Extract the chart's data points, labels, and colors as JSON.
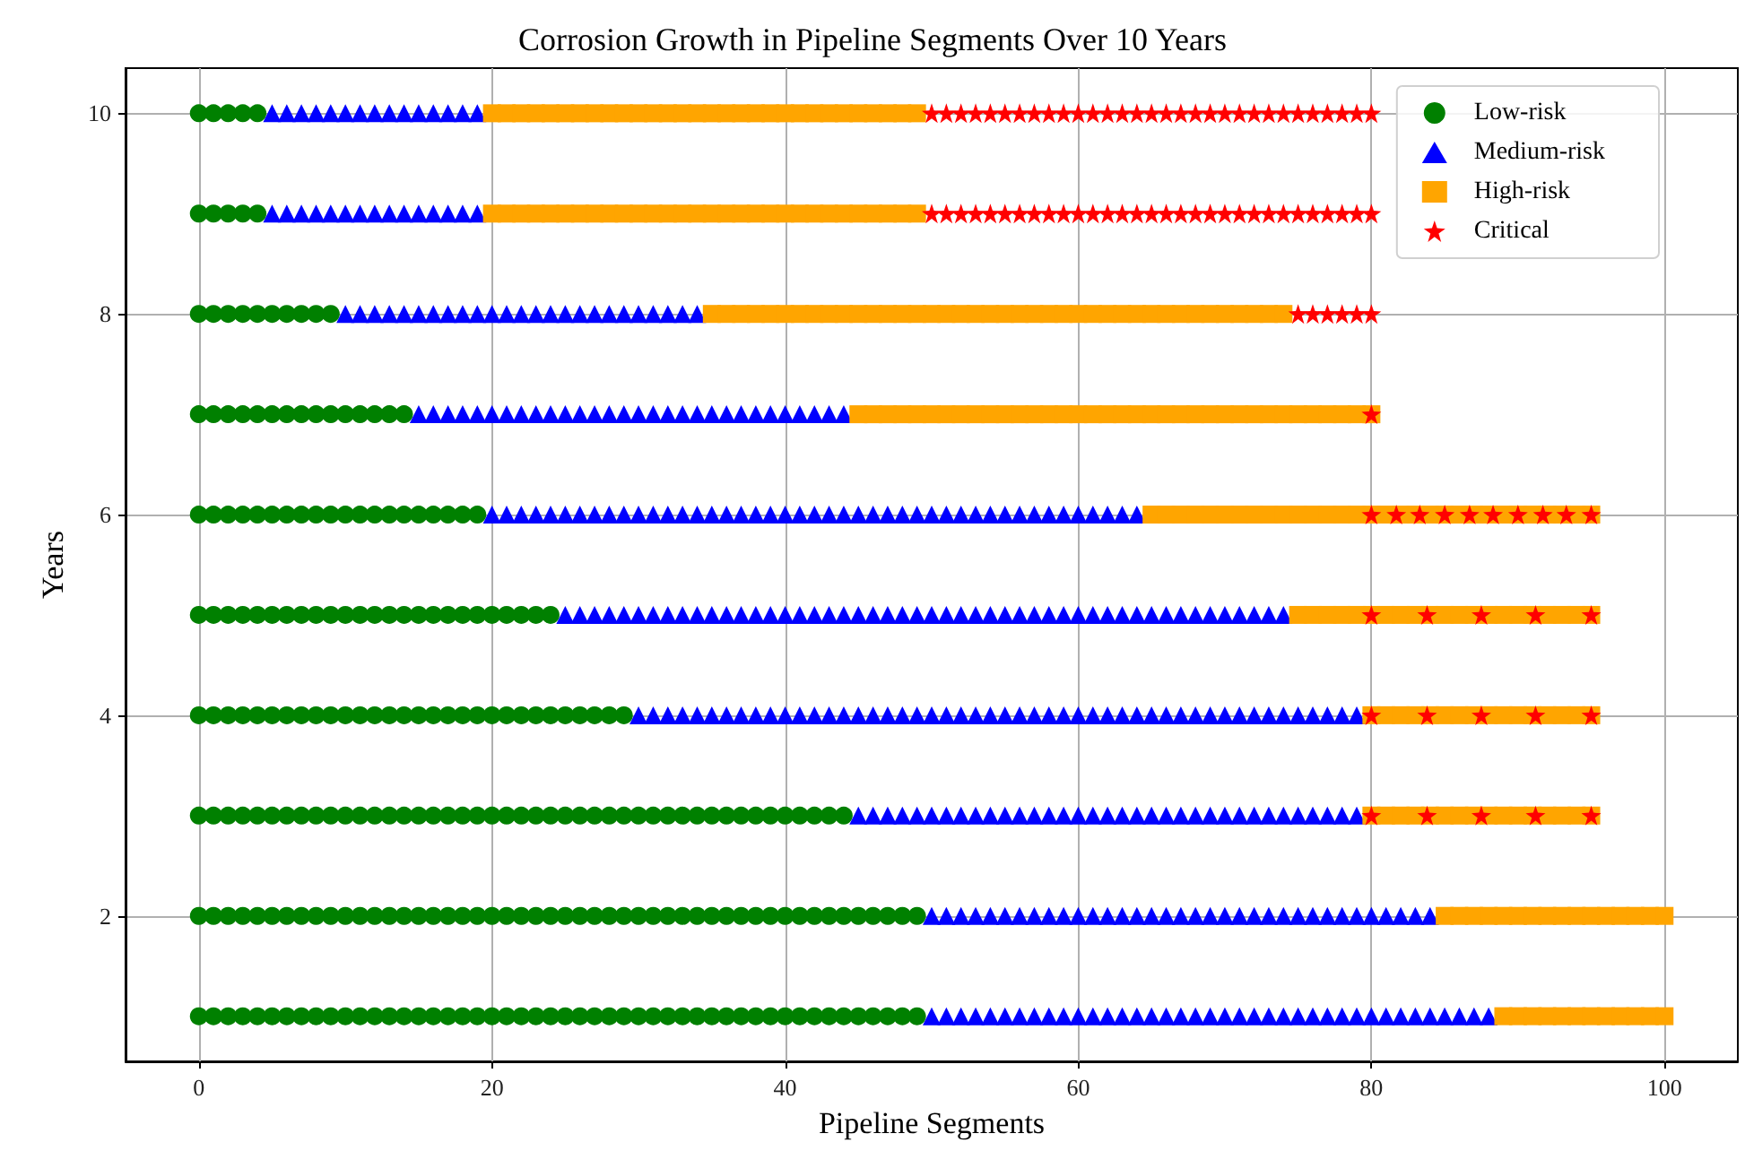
{
  "chart_data": {
    "type": "scatter",
    "title": "Corrosion Growth in Pipeline Segments Over 10 Years",
    "xlabel": "Pipeline Segments",
    "ylabel": "Years",
    "xlim": [
      -5,
      105
    ],
    "xticks": [
      0,
      20,
      40,
      60,
      80,
      100
    ],
    "ylim": [
      0.55,
      10.45
    ],
    "yticks": [
      2,
      4,
      6,
      8,
      10
    ],
    "grid": true,
    "legend": "top right",
    "series": [
      {
        "name": "Low-risk",
        "color": "#008000",
        "marker": "circle",
        "x": [
          0,
          1,
          2,
          3,
          4,
          5,
          6,
          7,
          8,
          9,
          10,
          11,
          12,
          13,
          14,
          15,
          16,
          17,
          18,
          19,
          20,
          21,
          22,
          23,
          24,
          25,
          26,
          27,
          28,
          29,
          30,
          31,
          32,
          33,
          34,
          35,
          36,
          37,
          38,
          39,
          40,
          41,
          42,
          43,
          44,
          45,
          46,
          47,
          48,
          49,
          0,
          1,
          2,
          3,
          4,
          5,
          6,
          7,
          8,
          9,
          10,
          11,
          12,
          13,
          14,
          15,
          16,
          17,
          18,
          19,
          20,
          21,
          22,
          23,
          24,
          25,
          26,
          27,
          28,
          29,
          30,
          31,
          32,
          33,
          34,
          35,
          36,
          37,
          38,
          39,
          40,
          41,
          42,
          43,
          44,
          45,
          46,
          47,
          48,
          49,
          0,
          1,
          2,
          3,
          4,
          5,
          6,
          7,
          8,
          9,
          10,
          11,
          12,
          13,
          14,
          15,
          16,
          17,
          18,
          19,
          20,
          21,
          22,
          23,
          24,
          25,
          26,
          27,
          28,
          29,
          30,
          31,
          32,
          33,
          34,
          35,
          36,
          37,
          38,
          39,
          40,
          41,
          42,
          43,
          44,
          0,
          1,
          2,
          3,
          4,
          5,
          6,
          7,
          8,
          9,
          10,
          11,
          12,
          13,
          14,
          15,
          16,
          17,
          18,
          19,
          20,
          21,
          22,
          23,
          24,
          25,
          26,
          27,
          28,
          29,
          0,
          1,
          2,
          3,
          4,
          5,
          6,
          7,
          8,
          9,
          10,
          11,
          12,
          13,
          14,
          15,
          16,
          17,
          18,
          19,
          20,
          21,
          22,
          23,
          24,
          0,
          1,
          2,
          3,
          4,
          5,
          6,
          7,
          8,
          9,
          10,
          11,
          12,
          13,
          14,
          15,
          16,
          17,
          18,
          19,
          0,
          1,
          2,
          3,
          4,
          5,
          6,
          7,
          8,
          9,
          10,
          11,
          12,
          13,
          14,
          0,
          1,
          2,
          3,
          4,
          5,
          6,
          7,
          8,
          9,
          0,
          1,
          2,
          3,
          4,
          0,
          1,
          2,
          3,
          4
        ],
        "values": [
          1,
          1,
          1,
          1,
          1,
          1,
          1,
          1,
          1,
          1,
          1,
          1,
          1,
          1,
          1,
          1,
          1,
          1,
          1,
          1,
          1,
          1,
          1,
          1,
          1,
          1,
          1,
          1,
          1,
          1,
          1,
          1,
          1,
          1,
          1,
          1,
          1,
          1,
          1,
          1,
          1,
          1,
          1,
          1,
          1,
          1,
          1,
          1,
          1,
          1,
          2,
          2,
          2,
          2,
          2,
          2,
          2,
          2,
          2,
          2,
          2,
          2,
          2,
          2,
          2,
          2,
          2,
          2,
          2,
          2,
          2,
          2,
          2,
          2,
          2,
          2,
          2,
          2,
          2,
          2,
          2,
          2,
          2,
          2,
          2,
          2,
          2,
          2,
          2,
          2,
          2,
          2,
          2,
          2,
          2,
          2,
          2,
          2,
          2,
          2,
          3,
          3,
          3,
          3,
          3,
          3,
          3,
          3,
          3,
          3,
          3,
          3,
          3,
          3,
          3,
          3,
          3,
          3,
          3,
          3,
          3,
          3,
          3,
          3,
          3,
          3,
          3,
          3,
          3,
          3,
          3,
          3,
          3,
          3,
          3,
          3,
          3,
          3,
          3,
          3,
          3,
          3,
          3,
          3,
          3,
          4,
          4,
          4,
          4,
          4,
          4,
          4,
          4,
          4,
          4,
          4,
          4,
          4,
          4,
          4,
          4,
          4,
          4,
          4,
          4,
          4,
          4,
          4,
          4,
          4,
          4,
          4,
          4,
          4,
          4,
          5,
          5,
          5,
          5,
          5,
          5,
          5,
          5,
          5,
          5,
          5,
          5,
          5,
          5,
          5,
          5,
          5,
          5,
          5,
          5,
          5,
          5,
          5,
          5,
          5,
          6,
          6,
          6,
          6,
          6,
          6,
          6,
          6,
          6,
          6,
          6,
          6,
          6,
          6,
          6,
          6,
          6,
          6,
          6,
          6,
          7,
          7,
          7,
          7,
          7,
          7,
          7,
          7,
          7,
          7,
          7,
          7,
          7,
          7,
          7,
          8,
          8,
          8,
          8,
          8,
          8,
          8,
          8,
          8,
          8,
          9,
          9,
          9,
          9,
          9,
          10,
          10,
          10,
          10,
          10
        ]
      },
      {
        "name": "Medium-risk",
        "color": "#0000ff",
        "marker": "triangle",
        "x": [
          50,
          51,
          52,
          53,
          54,
          55,
          56,
          57,
          58,
          59,
          60,
          61,
          62,
          63,
          64,
          65,
          66,
          67,
          68,
          69,
          70,
          71,
          72,
          73,
          74,
          75,
          76,
          77,
          78,
          79,
          80,
          81,
          82,
          83,
          84,
          85,
          86,
          87,
          88,
          50,
          51,
          52,
          53,
          54,
          55,
          56,
          57,
          58,
          59,
          60,
          61,
          62,
          63,
          64,
          65,
          66,
          67,
          68,
          69,
          70,
          71,
          72,
          73,
          74,
          75,
          76,
          77,
          78,
          79,
          80,
          81,
          82,
          83,
          84,
          45,
          46,
          47,
          48,
          49,
          50,
          51,
          52,
          53,
          54,
          55,
          56,
          57,
          58,
          59,
          60,
          61,
          62,
          63,
          64,
          65,
          66,
          67,
          68,
          69,
          70,
          71,
          72,
          73,
          74,
          75,
          76,
          77,
          78,
          79,
          30,
          31,
          32,
          33,
          34,
          35,
          36,
          37,
          38,
          39,
          40,
          41,
          42,
          43,
          44,
          45,
          46,
          47,
          48,
          49,
          50,
          51,
          52,
          53,
          54,
          55,
          56,
          57,
          58,
          59,
          60,
          61,
          62,
          63,
          64,
          65,
          66,
          67,
          68,
          69,
          70,
          71,
          72,
          73,
          74,
          75,
          76,
          77,
          78,
          79,
          25,
          26,
          27,
          28,
          29,
          30,
          31,
          32,
          33,
          34,
          35,
          36,
          37,
          38,
          39,
          40,
          41,
          42,
          43,
          44,
          45,
          46,
          47,
          48,
          49,
          50,
          51,
          52,
          53,
          54,
          55,
          56,
          57,
          58,
          59,
          60,
          61,
          62,
          63,
          64,
          65,
          66,
          67,
          68,
          69,
          70,
          71,
          72,
          73,
          74,
          20,
          21,
          22,
          23,
          24,
          25,
          26,
          27,
          28,
          29,
          30,
          31,
          32,
          33,
          34,
          35,
          36,
          37,
          38,
          39,
          40,
          41,
          42,
          43,
          44,
          45,
          46,
          47,
          48,
          49,
          50,
          51,
          52,
          53,
          54,
          55,
          56,
          57,
          58,
          59,
          60,
          61,
          62,
          63,
          64,
          15,
          16,
          17,
          18,
          19,
          20,
          21,
          22,
          23,
          24,
          25,
          26,
          27,
          28,
          29,
          30,
          31,
          32,
          33,
          34,
          35,
          36,
          37,
          38,
          39,
          40,
          41,
          42,
          43,
          44,
          10,
          11,
          12,
          13,
          14,
          15,
          16,
          17,
          18,
          19,
          20,
          21,
          22,
          23,
          24,
          25,
          26,
          27,
          28,
          29,
          30,
          31,
          32,
          33,
          34,
          5,
          6,
          7,
          8,
          9,
          10,
          11,
          12,
          13,
          14,
          15,
          16,
          17,
          18,
          19,
          5,
          6,
          7,
          8,
          9,
          10,
          11,
          12,
          13,
          14,
          15,
          16,
          17,
          18,
          19
        ],
        "values": [
          1,
          1,
          1,
          1,
          1,
          1,
          1,
          1,
          1,
          1,
          1,
          1,
          1,
          1,
          1,
          1,
          1,
          1,
          1,
          1,
          1,
          1,
          1,
          1,
          1,
          1,
          1,
          1,
          1,
          1,
          1,
          1,
          1,
          1,
          1,
          1,
          1,
          1,
          1,
          2,
          2,
          2,
          2,
          2,
          2,
          2,
          2,
          2,
          2,
          2,
          2,
          2,
          2,
          2,
          2,
          2,
          2,
          2,
          2,
          2,
          2,
          2,
          2,
          2,
          2,
          2,
          2,
          2,
          2,
          2,
          2,
          2,
          2,
          2,
          3,
          3,
          3,
          3,
          3,
          3,
          3,
          3,
          3,
          3,
          3,
          3,
          3,
          3,
          3,
          3,
          3,
          3,
          3,
          3,
          3,
          3,
          3,
          3,
          3,
          3,
          3,
          3,
          3,
          3,
          3,
          3,
          3,
          3,
          3,
          4,
          4,
          4,
          4,
          4,
          4,
          4,
          4,
          4,
          4,
          4,
          4,
          4,
          4,
          4,
          4,
          4,
          4,
          4,
          4,
          4,
          4,
          4,
          4,
          4,
          4,
          4,
          4,
          4,
          4,
          4,
          4,
          4,
          4,
          4,
          4,
          4,
          4,
          4,
          4,
          4,
          4,
          4,
          4,
          4,
          4,
          4,
          4,
          4,
          4,
          5,
          5,
          5,
          5,
          5,
          5,
          5,
          5,
          5,
          5,
          5,
          5,
          5,
          5,
          5,
          5,
          5,
          5,
          5,
          5,
          5,
          5,
          5,
          5,
          5,
          5,
          5,
          5,
          5,
          5,
          5,
          5,
          5,
          5,
          5,
          5,
          5,
          5,
          5,
          5,
          5,
          5,
          5,
          5,
          5,
          5,
          5,
          5,
          5,
          5,
          6,
          6,
          6,
          6,
          6,
          6,
          6,
          6,
          6,
          6,
          6,
          6,
          6,
          6,
          6,
          6,
          6,
          6,
          6,
          6,
          6,
          6,
          6,
          6,
          6,
          6,
          6,
          6,
          6,
          6,
          6,
          6,
          6,
          6,
          6,
          6,
          6,
          6,
          6,
          6,
          6,
          6,
          6,
          6,
          6,
          7,
          7,
          7,
          7,
          7,
          7,
          7,
          7,
          7,
          7,
          7,
          7,
          7,
          7,
          7,
          7,
          7,
          7,
          7,
          7,
          7,
          7,
          7,
          7,
          7,
          7,
          7,
          7,
          7,
          7,
          8,
          8,
          8,
          8,
          8,
          8,
          8,
          8,
          8,
          8,
          8,
          8,
          8,
          8,
          8,
          8,
          8,
          8,
          8,
          8,
          8,
          8,
          8,
          8,
          8,
          9,
          9,
          9,
          9,
          9,
          9,
          9,
          9,
          9,
          9,
          9,
          9,
          9,
          9,
          9,
          10,
          10,
          10,
          10,
          10,
          10,
          10,
          10,
          10,
          10,
          10,
          10,
          10,
          10,
          10
        ]
      },
      {
        "name": "High-risk",
        "color": "#ffa500",
        "marker": "square",
        "x": [
          89,
          90,
          91,
          92,
          93,
          94,
          95,
          96,
          97,
          98,
          99,
          100,
          85,
          86,
          87,
          88,
          89,
          90,
          91,
          92,
          93,
          94,
          95,
          96,
          97,
          98,
          99,
          100,
          80,
          81,
          82,
          83,
          84,
          85,
          86,
          87,
          88,
          89,
          90,
          91,
          92,
          93,
          94,
          95,
          80,
          81,
          82,
          83,
          84,
          85,
          86,
          87,
          88,
          89,
          90,
          91,
          92,
          93,
          94,
          95,
          75,
          76,
          77,
          78,
          79,
          80,
          81,
          82,
          83,
          84,
          85,
          86,
          87,
          88,
          89,
          90,
          91,
          92,
          93,
          94,
          95,
          65,
          66,
          67,
          68,
          69,
          70,
          71,
          72,
          73,
          74,
          75,
          76,
          77,
          78,
          79,
          80,
          81,
          82,
          83,
          84,
          85,
          86,
          87,
          88,
          89,
          90,
          91,
          92,
          93,
          94,
          95,
          45,
          46,
          47,
          48,
          49,
          50,
          51,
          52,
          53,
          54,
          55,
          56,
          57,
          58,
          59,
          60,
          61,
          62,
          63,
          64,
          65,
          66,
          67,
          68,
          69,
          70,
          71,
          72,
          73,
          74,
          75,
          76,
          77,
          78,
          79,
          80,
          35,
          36,
          37,
          38,
          39,
          40,
          41,
          42,
          43,
          44,
          45,
          46,
          47,
          48,
          49,
          50,
          51,
          52,
          53,
          54,
          55,
          56,
          57,
          58,
          59,
          60,
          61,
          62,
          63,
          64,
          65,
          66,
          67,
          68,
          69,
          70,
          71,
          72,
          73,
          74,
          20,
          21,
          22,
          23,
          24,
          25,
          26,
          27,
          28,
          29,
          30,
          31,
          32,
          33,
          34,
          35,
          36,
          37,
          38,
          39,
          40,
          41,
          42,
          43,
          44,
          45,
          46,
          47,
          48,
          49,
          20,
          21,
          22,
          23,
          24,
          25,
          26,
          27,
          28,
          29,
          30,
          31,
          32,
          33,
          34,
          35,
          36,
          37,
          38,
          39,
          40,
          41,
          42,
          43,
          44,
          45,
          46,
          47,
          48,
          49
        ],
        "values": [
          1,
          1,
          1,
          1,
          1,
          1,
          1,
          1,
          1,
          1,
          1,
          1,
          2,
          2,
          2,
          2,
          2,
          2,
          2,
          2,
          2,
          2,
          2,
          2,
          2,
          2,
          2,
          2,
          3,
          3,
          3,
          3,
          3,
          3,
          3,
          3,
          3,
          3,
          3,
          3,
          3,
          3,
          3,
          3,
          4,
          4,
          4,
          4,
          4,
          4,
          4,
          4,
          4,
          4,
          4,
          4,
          4,
          4,
          4,
          4,
          5,
          5,
          5,
          5,
          5,
          5,
          5,
          5,
          5,
          5,
          5,
          5,
          5,
          5,
          5,
          5,
          5,
          5,
          5,
          5,
          5,
          6,
          6,
          6,
          6,
          6,
          6,
          6,
          6,
          6,
          6,
          6,
          6,
          6,
          6,
          6,
          6,
          6,
          6,
          6,
          6,
          6,
          6,
          6,
          6,
          6,
          6,
          6,
          6,
          6,
          6,
          6,
          7,
          7,
          7,
          7,
          7,
          7,
          7,
          7,
          7,
          7,
          7,
          7,
          7,
          7,
          7,
          7,
          7,
          7,
          7,
          7,
          7,
          7,
          7,
          7,
          7,
          7,
          7,
          7,
          7,
          7,
          7,
          7,
          7,
          7,
          7,
          7,
          8,
          8,
          8,
          8,
          8,
          8,
          8,
          8,
          8,
          8,
          8,
          8,
          8,
          8,
          8,
          8,
          8,
          8,
          8,
          8,
          8,
          8,
          8,
          8,
          8,
          8,
          8,
          8,
          8,
          8,
          8,
          8,
          8,
          8,
          8,
          8,
          8,
          8,
          8,
          8,
          9,
          9,
          9,
          9,
          9,
          9,
          9,
          9,
          9,
          9,
          9,
          9,
          9,
          9,
          9,
          9,
          9,
          9,
          9,
          9,
          9,
          9,
          9,
          9,
          9,
          9,
          9,
          9,
          9,
          9,
          10,
          10,
          10,
          10,
          10,
          10,
          10,
          10,
          10,
          10,
          10,
          10,
          10,
          10,
          10,
          10,
          10,
          10,
          10,
          10,
          10,
          10,
          10,
          10,
          10,
          10,
          10,
          10,
          10,
          10
        ]
      },
      {
        "name": "Critical",
        "color": "#ff0000",
        "marker": "star",
        "x": [
          80,
          83.8,
          87.5,
          91.2,
          95,
          80,
          83.8,
          87.5,
          91.2,
          95,
          80,
          83.8,
          87.5,
          91.2,
          95,
          80,
          81.7,
          83.3,
          85,
          86.7,
          88.3,
          90,
          91.7,
          93.3,
          95,
          80,
          75,
          76,
          77,
          78,
          79,
          80,
          50,
          51,
          52,
          53,
          54,
          55,
          56,
          57,
          58,
          59,
          60,
          61,
          62,
          63,
          64,
          65,
          66,
          67,
          68,
          69,
          70,
          71,
          72,
          73,
          74,
          75,
          76,
          77,
          78,
          79,
          80,
          50,
          51,
          52,
          53,
          54,
          55,
          56,
          57,
          58,
          59,
          60,
          61,
          62,
          63,
          64,
          65,
          66,
          67,
          68,
          69,
          70,
          71,
          72,
          73,
          74,
          75,
          76,
          77,
          78,
          79,
          80
        ],
        "values": [
          3,
          3,
          3,
          3,
          3,
          4,
          4,
          4,
          4,
          4,
          5,
          5,
          5,
          5,
          5,
          6,
          6,
          6,
          6,
          6,
          6,
          6,
          6,
          6,
          6,
          7,
          8,
          8,
          8,
          8,
          8,
          8,
          9,
          9,
          9,
          9,
          9,
          9,
          9,
          9,
          9,
          9,
          9,
          9,
          9,
          9,
          9,
          9,
          9,
          9,
          9,
          9,
          9,
          9,
          9,
          9,
          9,
          9,
          9,
          9,
          9,
          9,
          9,
          10,
          10,
          10,
          10,
          10,
          10,
          10,
          10,
          10,
          10,
          10,
          10,
          10,
          10,
          10,
          10,
          10,
          10,
          10,
          10,
          10,
          10,
          10,
          10,
          10,
          10,
          10,
          10,
          10,
          10,
          10
        ]
      }
    ]
  }
}
